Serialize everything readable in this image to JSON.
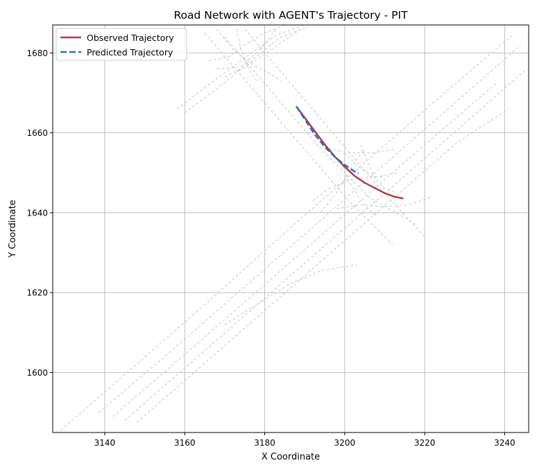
{
  "chart_data": {
    "type": "line",
    "title": "Road Network with AGENT's Trajectory - PIT",
    "xlabel": "X Coordinate",
    "ylabel": "Y Coordinate",
    "xlim": [
      3127,
      3246
    ],
    "ylim": [
      1585,
      1687
    ],
    "xticks": [
      3140,
      3160,
      3180,
      3200,
      3220,
      3240
    ],
    "yticks": [
      1600,
      1620,
      1640,
      1660,
      1680
    ],
    "grid": true,
    "legend_position": "top-left",
    "series": [
      {
        "name": "Observed Trajectory",
        "color": "#a93d52",
        "style": "solid",
        "x": [
          3188.0,
          3190.0,
          3192.5,
          3195.0,
          3197.5,
          3200.0,
          3202.5,
          3205.0,
          3207.5,
          3210.0,
          3212.5,
          3214.5
        ],
        "y": [
          1666.5,
          1663.8,
          1660.4,
          1657.1,
          1654.1,
          1651.5,
          1649.2,
          1647.5,
          1646.2,
          1644.9,
          1644.0,
          1643.6
        ]
      },
      {
        "name": "Predicted Trajectory",
        "color": "#2a72b5",
        "style": "dashed",
        "x": [
          3188.0,
          3190.0,
          3192.5,
          3195.0,
          3197.5,
          3200.0,
          3202.5,
          3203.5
        ],
        "y": [
          1666.5,
          1663.4,
          1659.6,
          1656.5,
          1654.0,
          1652.0,
          1650.3,
          1649.8
        ]
      }
    ],
    "road_network": {
      "color": "#c8c8c8",
      "style": "dashed",
      "lanes": [
        {
          "x": [
            3129,
            3145,
            3165,
            3185,
            3205,
            3225,
            3242
          ],
          "y": [
            1585.5,
            1599.5,
            1617,
            1635,
            1652.5,
            1670,
            1684.5
          ]
        },
        {
          "x": [
            3138.5,
            3155,
            3175,
            3195,
            3215,
            3235,
            3244
          ],
          "y": [
            1590,
            1604,
            1621.5,
            1639,
            1656.5,
            1674,
            1682
          ]
        },
        {
          "x": [
            3142,
            3160,
            3180,
            3200,
            3220,
            3238
          ],
          "y": [
            1589,
            1604.5,
            1622,
            1639.5,
            1657,
            1672.5
          ]
        },
        {
          "x": [
            3145,
            3165,
            3185,
            3205,
            3225,
            3245
          ],
          "y": [
            1588,
            1605.5,
            1623,
            1640.5,
            1658,
            1675.5
          ]
        },
        {
          "x": [
            3148,
            3168,
            3188,
            3208,
            3228,
            3241
          ],
          "y": [
            1587.5,
            1605,
            1622.5,
            1640,
            1657.5,
            1666
          ]
        },
        {
          "x": [
            3170,
            3182,
            3194,
            3206,
            3218
          ],
          "y": [
            1684,
            1670,
            1656,
            1644,
            1637
          ]
        },
        {
          "x": [
            3165,
            3177,
            3189,
            3201,
            3212
          ],
          "y": [
            1685,
            1671,
            1657,
            1643,
            1632
          ]
        },
        {
          "x": [
            3175,
            3186,
            3197,
            3208,
            3220
          ],
          "y": [
            1686,
            1673,
            1660,
            1647,
            1634
          ]
        },
        {
          "x": [
            3158,
            3166,
            3174,
            3183,
            3190
          ],
          "y": [
            1666,
            1672,
            1678,
            1684.5,
            1687
          ]
        },
        {
          "x": [
            3160,
            3168,
            3176,
            3184,
            3192
          ],
          "y": [
            1665,
            1671,
            1677.5,
            1684,
            1687
          ]
        },
        {
          "x": [
            3168,
            3172,
            3177,
            3181,
            3184
          ],
          "y": [
            1686,
            1681,
            1677,
            1675,
            1673
          ]
        },
        {
          "x": [
            3166,
            3171,
            3175,
            3180,
            3185
          ],
          "y": [
            1678,
            1679,
            1682,
            1685,
            1687
          ]
        },
        {
          "x": [
            3168,
            3174,
            3179,
            3183
          ],
          "y": [
            1676,
            1676.5,
            1681,
            1686
          ]
        },
        {
          "x": [
            3170,
            3176,
            3182,
            3189
          ],
          "y": [
            1674,
            1677,
            1681,
            1686
          ]
        },
        {
          "x": [
            3173,
            3174,
            3176,
            3178
          ],
          "y": [
            1686,
            1681,
            1676,
            1673
          ]
        },
        {
          "x": [
            3170,
            3178,
            3186,
            3194,
            3203
          ],
          "y": [
            1612,
            1617,
            1622,
            1625.5,
            1627
          ]
        },
        {
          "x": [
            3192,
            3196,
            3201,
            3206,
            3210
          ],
          "y": [
            1643,
            1646,
            1648,
            1649,
            1649
          ]
        },
        {
          "x": [
            3194,
            3198,
            3202,
            3205
          ],
          "y": [
            1640,
            1645,
            1652,
            1656
          ]
        },
        {
          "x": [
            3198,
            3204,
            3210,
            3216,
            3222
          ],
          "y": [
            1641,
            1642,
            1641.5,
            1642,
            1644
          ]
        },
        {
          "x": [
            3196,
            3201,
            3207,
            3213
          ],
          "y": [
            1656,
            1655,
            1655,
            1656
          ]
        },
        {
          "x": [
            3204,
            3206,
            3208,
            3210,
            3213
          ],
          "y": [
            1657,
            1652,
            1648,
            1646,
            1645
          ]
        },
        {
          "x": [
            3200,
            3204,
            3208,
            3213
          ],
          "y": [
            1655,
            1651,
            1649,
            1650
          ]
        },
        {
          "x": [
            3199,
            3201,
            3204,
            3208
          ],
          "y": [
            1653,
            1648,
            1643,
            1639
          ]
        }
      ]
    }
  }
}
